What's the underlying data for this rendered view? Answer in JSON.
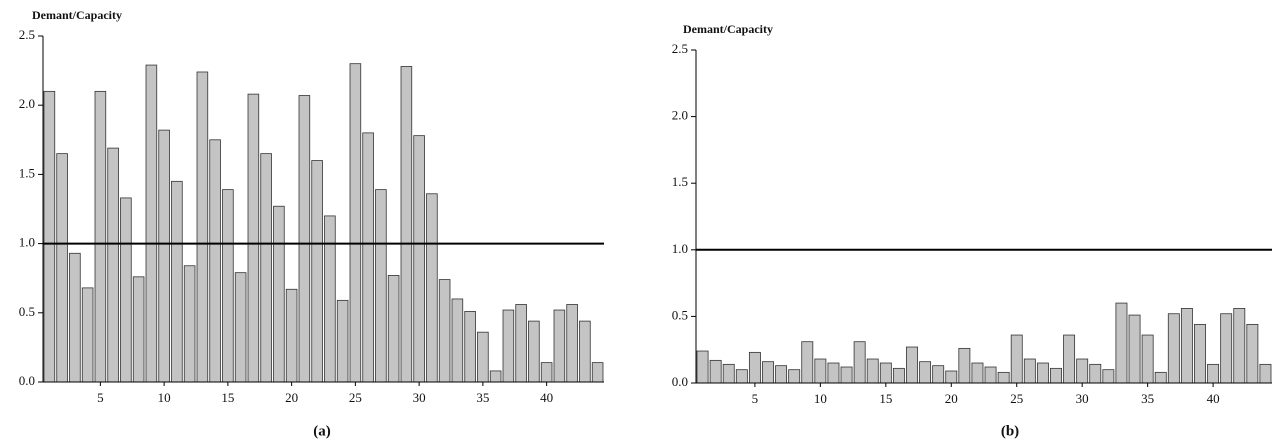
{
  "chart_data": [
    {
      "type": "bar",
      "label": "(a)",
      "y_label": "Demant/Capacity",
      "categories": [
        null,
        null,
        null,
        null,
        "5",
        null,
        null,
        null,
        null,
        "10",
        null,
        null,
        null,
        null,
        "15",
        null,
        null,
        null,
        null,
        "20",
        null,
        null,
        null,
        null,
        "25",
        null,
        null,
        null,
        null,
        "30",
        null,
        null,
        null,
        null,
        "35",
        null,
        null,
        null,
        null,
        "40",
        null,
        null,
        null,
        null
      ],
      "values": [
        2.1,
        1.65,
        0.93,
        0.68,
        2.1,
        1.69,
        1.33,
        0.76,
        2.29,
        1.82,
        1.45,
        0.84,
        2.24,
        1.75,
        1.39,
        0.79,
        2.08,
        1.65,
        1.27,
        0.67,
        2.07,
        1.6,
        1.2,
        0.59,
        2.3,
        1.8,
        1.39,
        0.77,
        2.28,
        1.78,
        1.36,
        0.74,
        0.6,
        0.51,
        0.36,
        0.08,
        0.52,
        0.56,
        0.44,
        0.14,
        0.52,
        0.56,
        0.44,
        0.14
      ],
      "color": "#c4c4c4",
      "reference_line": 1.0,
      "ylim": [
        0,
        2.5
      ],
      "yticks": [
        {
          "value": 0,
          "label": "0.0"
        },
        {
          "value": 0.5,
          "label": "0.5"
        },
        {
          "value": 1,
          "label": "1.0"
        },
        {
          "value": 1.5,
          "label": "1.5"
        },
        {
          "value": 2,
          "label": "2.0"
        },
        {
          "value": 2.5,
          "label": "2.5"
        }
      ]
    },
    {
      "type": "bar",
      "label": "(b)",
      "y_label": "Demant/Capacity",
      "categories": [
        null,
        null,
        null,
        null,
        "5",
        null,
        null,
        null,
        null,
        "10",
        null,
        null,
        null,
        null,
        "15",
        null,
        null,
        null,
        null,
        "20",
        null,
        null,
        null,
        null,
        "25",
        null,
        null,
        null,
        null,
        "30",
        null,
        null,
        null,
        null,
        "35",
        null,
        null,
        null,
        null,
        "40",
        null,
        null,
        null,
        null
      ],
      "values": [
        0.24,
        0.17,
        0.14,
        0.1,
        0.23,
        0.16,
        0.13,
        0.1,
        0.31,
        0.18,
        0.15,
        0.12,
        0.31,
        0.18,
        0.15,
        0.11,
        0.27,
        0.16,
        0.13,
        0.09,
        0.26,
        0.15,
        0.12,
        0.08,
        0.36,
        0.18,
        0.15,
        0.11,
        0.36,
        0.18,
        0.14,
        0.1,
        0.6,
        0.51,
        0.36,
        0.08,
        0.52,
        0.56,
        0.44,
        0.14,
        0.52,
        0.56,
        0.44,
        0.14
      ],
      "color": "#c4c4c4",
      "reference_line": 1.0,
      "ylim": [
        0,
        2.5
      ],
      "yticks": [
        {
          "value": 0,
          "label": "0.0"
        },
        {
          "value": 0.5,
          "label": "0.5"
        },
        {
          "value": 1,
          "label": "1.0"
        },
        {
          "value": 1.5,
          "label": "1.5"
        },
        {
          "value": 2,
          "label": "2.0"
        },
        {
          "value": 2.5,
          "label": "2.5"
        }
      ]
    }
  ]
}
